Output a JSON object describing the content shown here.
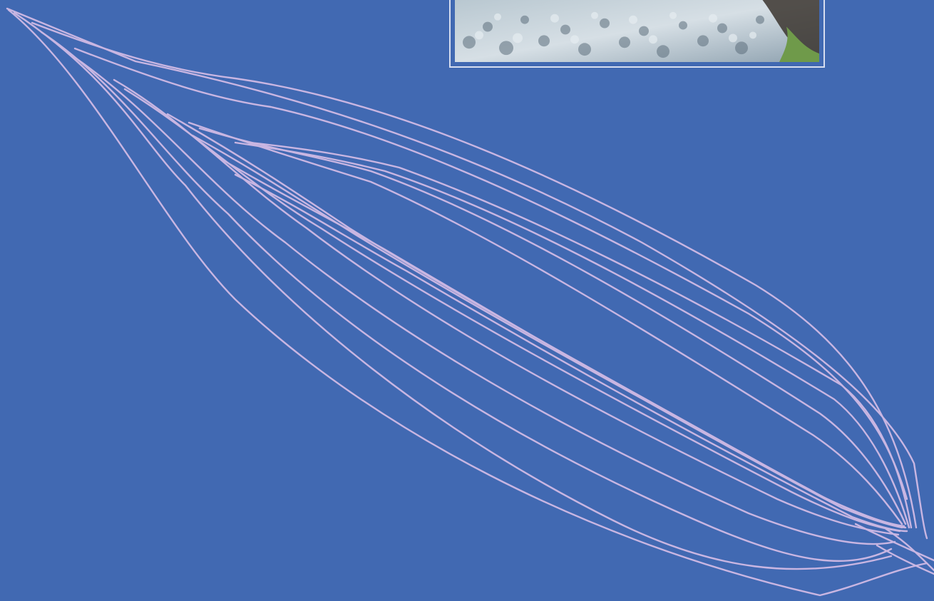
{
  "colors": {
    "background": "#4169b2",
    "vein_stroke": "#c9b6e2",
    "frame_border": "#d7def0",
    "foliage_light": "#c7d3db",
    "foliage_mid": "#93a7b6",
    "foliage_dark": "#4d5f6d",
    "soil": "#3b352f",
    "grass": "#6f9a4a"
  },
  "icons": {
    "leaf_art": "leaf-venation-icon",
    "photo": "silver-foliage-photo"
  }
}
